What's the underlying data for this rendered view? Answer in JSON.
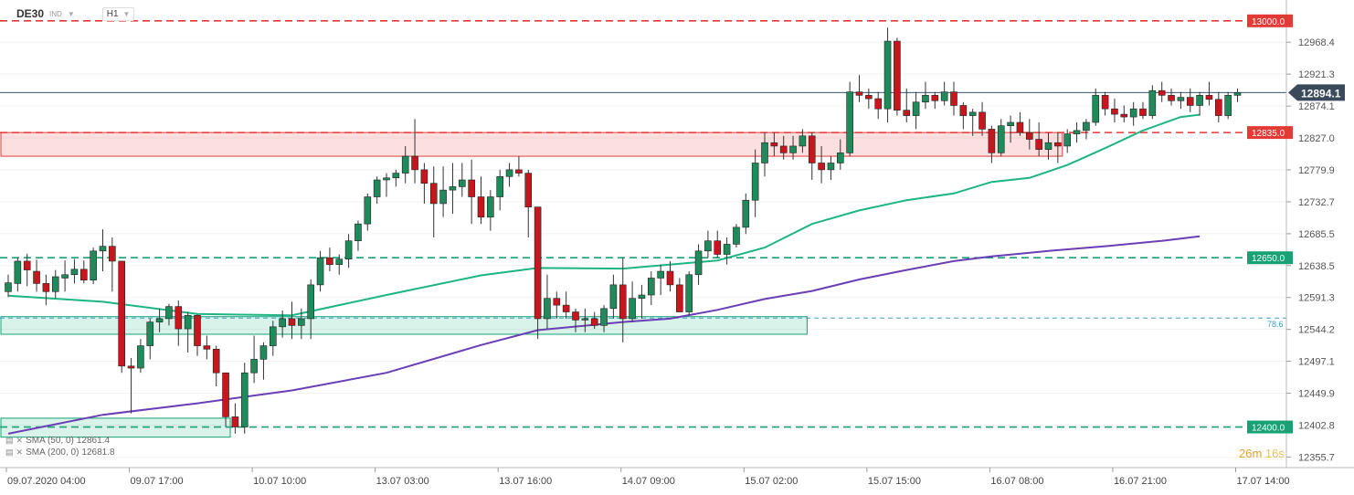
{
  "header": {
    "symbol": "DE30",
    "symbol_type": "IND",
    "timeframe": "H1"
  },
  "indicators": [
    {
      "label": "SMA (50, 0)",
      "value": "12861.4",
      "color": "#1db584"
    },
    {
      "label": "SMA (200, 0)",
      "value": "12681.8",
      "color": "#6a3fb5"
    }
  ],
  "countdown": {
    "minutes": "26m",
    "seconds": "16s"
  },
  "fib_label": "78.6",
  "colors": {
    "up": "#1f8a5a",
    "down": "#c8161d",
    "sma50": "#1db584",
    "sma200": "#6a3fb5",
    "red_level": "#e53935",
    "green_level": "#17a174",
    "price_line": "#1e3a5f"
  },
  "chart_data": {
    "type": "candlestick",
    "y_range": [
      12340,
      13020
    ],
    "y_ticks": [
      "12968.4",
      "12921.3",
      "12874.1",
      "12827.0",
      "12779.9",
      "12732.7",
      "12685.5",
      "12638.5",
      "12591.3",
      "12544.2",
      "12497.1",
      "12449.9",
      "12402.8",
      "12355.7"
    ],
    "x_ticks": [
      "09.07.2020 04:00",
      "09.07 17:00",
      "10.07 10:00",
      "13.07 03:00",
      "13.07 16:00",
      "14.07 09:00",
      "15.07 02:00",
      "15.07 15:00",
      "16.07 08:00",
      "16.07 21:00",
      "17.07 14:00"
    ],
    "current_price": "12894.1",
    "levels": [
      {
        "price": 13000.0,
        "label": "13000.0",
        "kind": "resistance"
      },
      {
        "price": 12835.0,
        "label": "12835.0",
        "kind": "resistance"
      },
      {
        "price": 12650.0,
        "label": "12650.0",
        "kind": "support"
      },
      {
        "price": 12400.0,
        "label": "12400.0",
        "kind": "support"
      }
    ],
    "zones": [
      {
        "from": 12800,
        "to": 12835,
        "start_bar": 0,
        "end_bar": 111,
        "kind": "resistance"
      },
      {
        "from": 12537,
        "to": 12563,
        "start_bar": 0,
        "end_bar": 84,
        "kind": "support"
      },
      {
        "from": 12385,
        "to": 12413,
        "start_bar": 0,
        "end_bar": 23,
        "kind": "support"
      }
    ],
    "fib_level": 12561,
    "candles": [
      [
        12600,
        12625,
        12592,
        12613
      ],
      [
        12612,
        12650,
        12600,
        12645
      ],
      [
        12645,
        12656,
        12608,
        12632
      ],
      [
        12630,
        12647,
        12600,
        12612
      ],
      [
        12612,
        12625,
        12580,
        12600
      ],
      [
        12600,
        12632,
        12590,
        12622
      ],
      [
        12620,
        12646,
        12600,
        12625
      ],
      [
        12625,
        12648,
        12612,
        12633
      ],
      [
        12633,
        12646,
        12612,
        12617
      ],
      [
        12617,
        12665,
        12611,
        12660
      ],
      [
        12660,
        12692,
        12630,
        12667
      ],
      [
        12667,
        12680,
        12600,
        12645
      ],
      [
        12645,
        12645,
        12480,
        12490
      ],
      [
        12490,
        12502,
        12420,
        12487
      ],
      [
        12487,
        12530,
        12480,
        12520
      ],
      [
        12520,
        12560,
        12500,
        12555
      ],
      [
        12555,
        12575,
        12540,
        12560
      ],
      [
        12560,
        12582,
        12550,
        12578
      ],
      [
        12578,
        12587,
        12520,
        12545
      ],
      [
        12545,
        12570,
        12510,
        12565
      ],
      [
        12565,
        12566,
        12505,
        12520
      ],
      [
        12520,
        12535,
        12500,
        12515
      ],
      [
        12515,
        12520,
        12460,
        12480
      ],
      [
        12480,
        12480,
        12400,
        12415
      ],
      [
        12415,
        12435,
        12390,
        12400
      ],
      [
        12400,
        12495,
        12390,
        12480
      ],
      [
        12480,
        12535,
        12465,
        12500
      ],
      [
        12500,
        12525,
        12470,
        12520
      ],
      [
        12520,
        12557,
        12505,
        12548
      ],
      [
        12548,
        12572,
        12532,
        12560
      ],
      [
        12560,
        12585,
        12530,
        12550
      ],
      [
        12550,
        12575,
        12530,
        12560
      ],
      [
        12560,
        12618,
        12530,
        12610
      ],
      [
        12610,
        12660,
        12600,
        12650
      ],
      [
        12650,
        12665,
        12630,
        12640
      ],
      [
        12640,
        12655,
        12625,
        12648
      ],
      [
        12648,
        12685,
        12635,
        12675
      ],
      [
        12675,
        12705,
        12660,
        12700
      ],
      [
        12700,
        12745,
        12690,
        12740
      ],
      [
        12740,
        12770,
        12730,
        12765
      ],
      [
        12765,
        12775,
        12740,
        12768
      ],
      [
        12768,
        12780,
        12755,
        12775
      ],
      [
        12775,
        12815,
        12760,
        12800
      ],
      [
        12800,
        12855,
        12760,
        12780
      ],
      [
        12780,
        12790,
        12730,
        12760
      ],
      [
        12760,
        12785,
        12680,
        12730
      ],
      [
        12730,
        12785,
        12710,
        12750
      ],
      [
        12750,
        12790,
        12715,
        12755
      ],
      [
        12755,
        12790,
        12740,
        12765
      ],
      [
        12765,
        12795,
        12700,
        12740
      ],
      [
        12740,
        12770,
        12700,
        12710
      ],
      [
        12710,
        12750,
        12690,
        12740
      ],
      [
        12740,
        12780,
        12720,
        12770
      ],
      [
        12770,
        12790,
        12755,
        12780
      ],
      [
        12780,
        12800,
        12770,
        12775
      ],
      [
        12775,
        12780,
        12680,
        12725
      ],
      [
        12725,
        12725,
        12530,
        12560
      ],
      [
        12560,
        12625,
        12545,
        12590
      ],
      [
        12590,
        12600,
        12560,
        12580
      ],
      [
        12580,
        12600,
        12560,
        12570
      ],
      [
        12570,
        12575,
        12540,
        12558
      ],
      [
        12558,
        12575,
        12540,
        12560
      ],
      [
        12560,
        12570,
        12545,
        12550
      ],
      [
        12550,
        12580,
        12540,
        12575
      ],
      [
        12575,
        12625,
        12560,
        12610
      ],
      [
        12610,
        12650,
        12525,
        12560
      ],
      [
        12560,
        12615,
        12555,
        12590
      ],
      [
        12590,
        12610,
        12560,
        12595
      ],
      [
        12595,
        12630,
        12580,
        12620
      ],
      [
        12620,
        12640,
        12595,
        12630
      ],
      [
        12630,
        12645,
        12600,
        12610
      ],
      [
        12610,
        12620,
        12570,
        12570
      ],
      [
        12570,
        12630,
        12565,
        12625
      ],
      [
        12625,
        12670,
        12610,
        12660
      ],
      [
        12660,
        12690,
        12650,
        12675
      ],
      [
        12675,
        12690,
        12650,
        12655
      ],
      [
        12655,
        12680,
        12640,
        12670
      ],
      [
        12670,
        12700,
        12665,
        12695
      ],
      [
        12695,
        12745,
        12685,
        12735
      ],
      [
        12735,
        12810,
        12710,
        12790
      ],
      [
        12790,
        12835,
        12770,
        12820
      ],
      [
        12820,
        12835,
        12800,
        12815
      ],
      [
        12815,
        12830,
        12795,
        12805
      ],
      [
        12805,
        12830,
        12795,
        12815
      ],
      [
        12815,
        12840,
        12805,
        12830
      ],
      [
        12830,
        12835,
        12765,
        12790
      ],
      [
        12790,
        12815,
        12760,
        12780
      ],
      [
        12780,
        12800,
        12765,
        12790
      ],
      [
        12790,
        12825,
        12780,
        12805
      ],
      [
        12805,
        12910,
        12800,
        12895
      ],
      [
        12895,
        12920,
        12880,
        12890
      ],
      [
        12890,
        12900,
        12870,
        12885
      ],
      [
        12885,
        12895,
        12855,
        12870
      ],
      [
        12870,
        12990,
        12850,
        12970
      ],
      [
        12970,
        12975,
        12860,
        12868
      ],
      [
        12868,
        12900,
        12850,
        12860
      ],
      [
        12860,
        12895,
        12840,
        12880
      ],
      [
        12880,
        12910,
        12870,
        12890
      ],
      [
        12890,
        12895,
        12870,
        12882
      ],
      [
        12882,
        12910,
        12875,
        12895
      ],
      [
        12895,
        12910,
        12860,
        12875
      ],
      [
        12875,
        12880,
        12840,
        12860
      ],
      [
        12860,
        12870,
        12830,
        12865
      ],
      [
        12865,
        12880,
        12830,
        12840
      ],
      [
        12840,
        12845,
        12790,
        12805
      ],
      [
        12805,
        12855,
        12800,
        12845
      ],
      [
        12845,
        12860,
        12820,
        12850
      ],
      [
        12850,
        12865,
        12830,
        12835
      ],
      [
        12835,
        12855,
        12810,
        12825
      ],
      [
        12825,
        12850,
        12800,
        12810
      ],
      [
        12810,
        12835,
        12795,
        12820
      ],
      [
        12820,
        12835,
        12790,
        12815
      ],
      [
        12815,
        12840,
        12805,
        12833
      ],
      [
        12833,
        12850,
        12820,
        12838
      ],
      [
        12838,
        12855,
        12825,
        12850
      ],
      [
        12850,
        12900,
        12845,
        12890
      ],
      [
        12890,
        12895,
        12860,
        12870
      ],
      [
        12870,
        12885,
        12850,
        12862
      ],
      [
        12862,
        12875,
        12850,
        12858
      ],
      [
        12858,
        12880,
        12845,
        12870
      ],
      [
        12870,
        12880,
        12855,
        12860
      ],
      [
        12860,
        12905,
        12855,
        12897
      ],
      [
        12897,
        12910,
        12880,
        12890
      ],
      [
        12890,
        12900,
        12875,
        12882
      ],
      [
        12882,
        12895,
        12870,
        12887
      ],
      [
        12887,
        12900,
        12865,
        12875
      ],
      [
        12875,
        12895,
        12860,
        12890
      ],
      [
        12890,
        12910,
        12875,
        12884
      ],
      [
        12884,
        12895,
        12850,
        12860
      ],
      [
        12860,
        12895,
        12855,
        12890
      ],
      [
        12890,
        12900,
        12880,
        12894
      ]
    ],
    "sma50": [
      [
        0,
        12594
      ],
      [
        10,
        12585
      ],
      [
        20,
        12567
      ],
      [
        30,
        12565
      ],
      [
        40,
        12595
      ],
      [
        50,
        12624
      ],
      [
        56,
        12635
      ],
      [
        65,
        12634
      ],
      [
        75,
        12646
      ],
      [
        80,
        12665
      ],
      [
        85,
        12700
      ],
      [
        90,
        12720
      ],
      [
        95,
        12735
      ],
      [
        100,
        12745
      ],
      [
        104,
        12762
      ],
      [
        108,
        12768
      ],
      [
        112,
        12787
      ],
      [
        116,
        12812
      ],
      [
        120,
        12838
      ],
      [
        124,
        12858
      ],
      [
        126,
        12861.4
      ]
    ],
    "sma200": [
      [
        0,
        12390
      ],
      [
        10,
        12418
      ],
      [
        20,
        12435
      ],
      [
        30,
        12454
      ],
      [
        40,
        12480
      ],
      [
        50,
        12521
      ],
      [
        56,
        12543
      ],
      [
        65,
        12555
      ],
      [
        70,
        12560
      ],
      [
        75,
        12573
      ],
      [
        80,
        12589
      ],
      [
        85,
        12601
      ],
      [
        90,
        12618
      ],
      [
        95,
        12632
      ],
      [
        100,
        12645
      ],
      [
        104,
        12652
      ],
      [
        110,
        12660
      ],
      [
        116,
        12667
      ],
      [
        122,
        12675
      ],
      [
        126,
        12681.8
      ]
    ]
  }
}
